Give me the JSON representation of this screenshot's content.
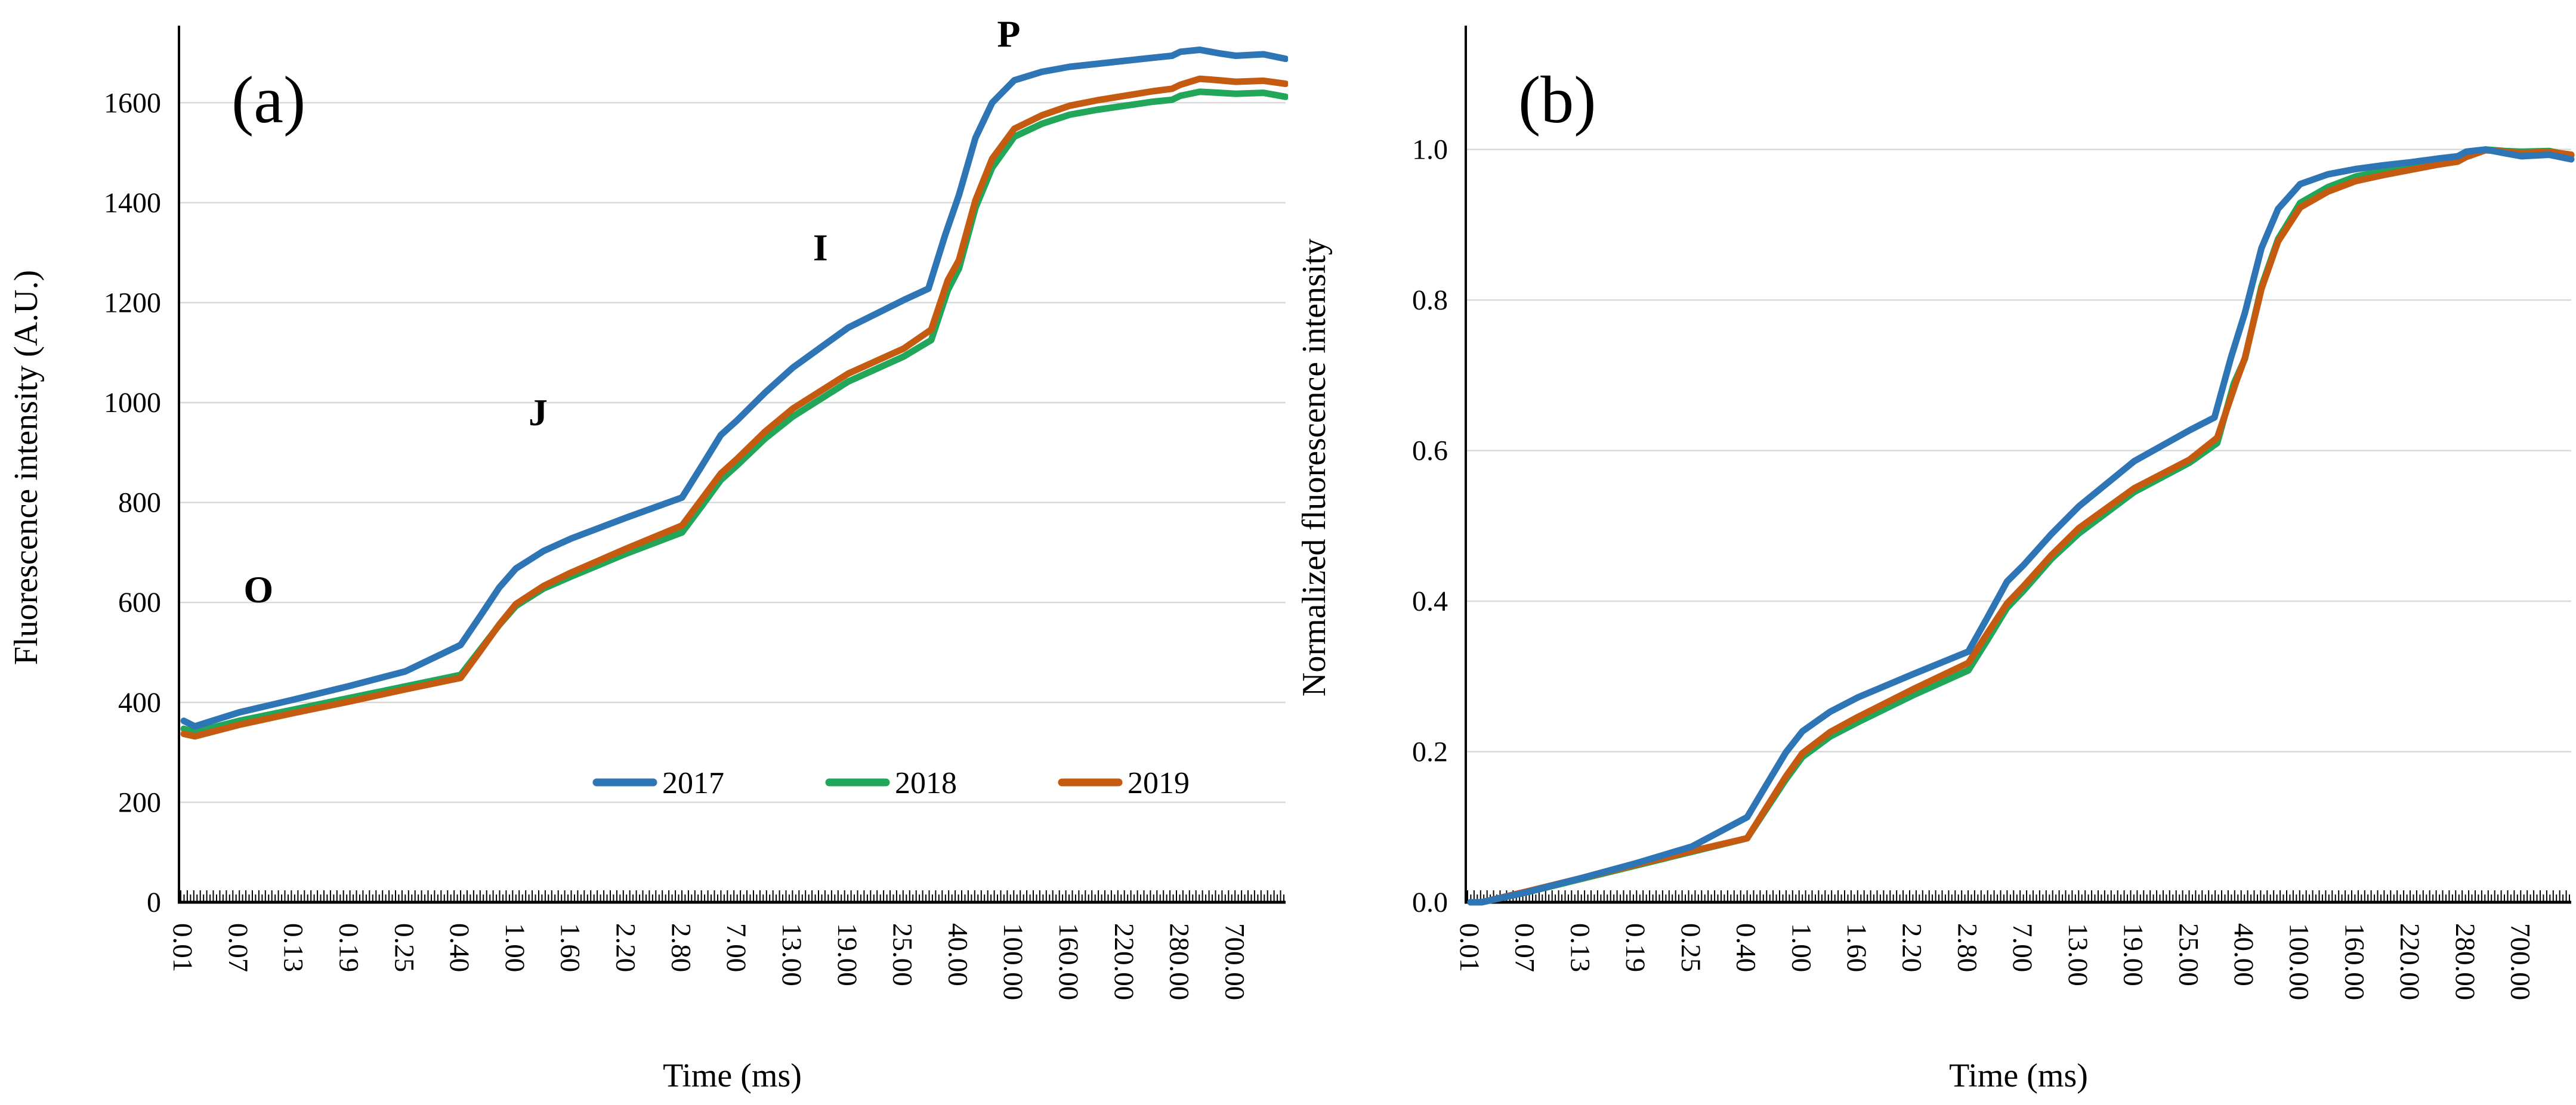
{
  "figure": {
    "background": "#ffffff",
    "grid_color": "#d9d9d9",
    "axis_color": "#000000"
  },
  "chart_data": [
    {
      "type": "line",
      "panel_label": "(a)",
      "ylabel": "Fluorescence intensity (A.U.)",
      "xlabel": "Time (ms)",
      "x_tick_labels": [
        "0.01",
        "0.07",
        "0.13",
        "0.19",
        "0.25",
        "0.40",
        "1.00",
        "1.60",
        "2.20",
        "2.80",
        "7.00",
        "13.00",
        "19.00",
        "25.00",
        "40.00",
        "100.00",
        "160.00",
        "220.00",
        "280.00",
        "700.00"
      ],
      "y_tick_labels": [
        "0",
        "200",
        "400",
        "600",
        "800",
        "1000",
        "1200",
        "1400",
        "1600"
      ],
      "ylim": [
        0,
        1740
      ],
      "ytick_step": 200,
      "grid": true,
      "x_minor_tick_count": 340,
      "legend": {
        "entries": [
          "2017",
          "2018",
          "2019"
        ]
      },
      "annotations": [
        {
          "text": "O",
          "xi": 1.35,
          "v": 600
        },
        {
          "text": "J",
          "xi": 6.4,
          "v": 955
        },
        {
          "text": "I",
          "xi": 11.5,
          "v": 1285
        },
        {
          "text": "P",
          "xi": 14.9,
          "v": 1712
        }
      ],
      "series": [
        {
          "name": "2017",
          "color": "#2E75B6",
          "z": 2,
          "points": [
            [
              0,
              363
            ],
            [
              0.2,
              352
            ],
            [
              1,
              380
            ],
            [
              2,
              406
            ],
            [
              3,
              433
            ],
            [
              4,
              462
            ],
            [
              5,
              515
            ],
            [
              5.35,
              572
            ],
            [
              5.7,
              630
            ],
            [
              6,
              668
            ],
            [
              6.5,
              703
            ],
            [
              7,
              728
            ],
            [
              8,
              770
            ],
            [
              9,
              810
            ],
            [
              9.35,
              872
            ],
            [
              9.7,
              935
            ],
            [
              10,
              965
            ],
            [
              10.5,
              1020
            ],
            [
              11,
              1070
            ],
            [
              12,
              1150
            ],
            [
              13,
              1205
            ],
            [
              13.45,
              1228
            ],
            [
              13.75,
              1335
            ],
            [
              14,
              1415
            ],
            [
              14.3,
              1530
            ],
            [
              14.6,
              1600
            ],
            [
              15,
              1645
            ],
            [
              15.5,
              1662
            ],
            [
              16,
              1672
            ],
            [
              16.5,
              1678
            ],
            [
              17,
              1684
            ],
            [
              17.5,
              1690
            ],
            [
              17.85,
              1694
            ],
            [
              18,
              1702
            ],
            [
              18.35,
              1706
            ],
            [
              18.7,
              1699
            ],
            [
              19,
              1694
            ],
            [
              19.5,
              1697
            ],
            [
              19.9,
              1688
            ]
          ]
        },
        {
          "name": "2018",
          "color": "#21A65A",
          "z": 0,
          "points": [
            [
              0,
              347
            ],
            [
              0.2,
              341
            ],
            [
              1,
              363
            ],
            [
              2,
              386
            ],
            [
              3,
              409
            ],
            [
              4,
              432
            ],
            [
              5,
              455
            ],
            [
              5.35,
              505
            ],
            [
              5.7,
              555
            ],
            [
              6,
              593
            ],
            [
              6.5,
              628
            ],
            [
              7,
              652
            ],
            [
              8,
              698
            ],
            [
              9,
              740
            ],
            [
              9.35,
              792
            ],
            [
              9.7,
              845
            ],
            [
              10,
              875
            ],
            [
              10.5,
              928
            ],
            [
              11,
              972
            ],
            [
              12,
              1042
            ],
            [
              13,
              1092
            ],
            [
              13.5,
              1125
            ],
            [
              13.8,
              1225
            ],
            [
              14,
              1268
            ],
            [
              14.3,
              1390
            ],
            [
              14.6,
              1470
            ],
            [
              15,
              1532
            ],
            [
              15.5,
              1558
            ],
            [
              16,
              1576
            ],
            [
              16.5,
              1586
            ],
            [
              17,
              1594
            ],
            [
              17.5,
              1602
            ],
            [
              17.85,
              1606
            ],
            [
              18,
              1614
            ],
            [
              18.35,
              1622
            ],
            [
              18.7,
              1620
            ],
            [
              19,
              1618
            ],
            [
              19.5,
              1620
            ],
            [
              19.9,
              1612
            ]
          ]
        },
        {
          "name": "2019",
          "color": "#C55A11",
          "z": 1,
          "points": [
            [
              0,
              337
            ],
            [
              0.2,
              332
            ],
            [
              1,
              355
            ],
            [
              2,
              379
            ],
            [
              3,
              402
            ],
            [
              4,
              426
            ],
            [
              5,
              449
            ],
            [
              5.35,
              502
            ],
            [
              5.7,
              556
            ],
            [
              6,
              597
            ],
            [
              6.5,
              633
            ],
            [
              7,
              660
            ],
            [
              8,
              708
            ],
            [
              9,
              754
            ],
            [
              9.35,
              806
            ],
            [
              9.7,
              858
            ],
            [
              10,
              888
            ],
            [
              10.5,
              942
            ],
            [
              11,
              988
            ],
            [
              12,
              1058
            ],
            [
              13,
              1108
            ],
            [
              13.5,
              1146
            ],
            [
              13.8,
              1245
            ],
            [
              14,
              1285
            ],
            [
              14.3,
              1405
            ],
            [
              14.6,
              1488
            ],
            [
              15,
              1548
            ],
            [
              15.5,
              1575
            ],
            [
              16,
              1594
            ],
            [
              16.5,
              1605
            ],
            [
              17,
              1614
            ],
            [
              17.5,
              1623
            ],
            [
              17.85,
              1628
            ],
            [
              18,
              1636
            ],
            [
              18.35,
              1648
            ],
            [
              18.7,
              1645
            ],
            [
              19,
              1642
            ],
            [
              19.5,
              1644
            ],
            [
              19.9,
              1638
            ]
          ]
        }
      ]
    },
    {
      "type": "line",
      "panel_label": "(b)",
      "ylabel": "Normalized fluorescence intensity",
      "xlabel": "Time (ms)",
      "x_tick_labels": [
        "0.01",
        "0.07",
        "0.13",
        "0.19",
        "0.25",
        "0.40",
        "1.00",
        "1.60",
        "2.20",
        "2.80",
        "7.00",
        "13.00",
        "19.00",
        "25.00",
        "40.00",
        "100.00",
        "160.00",
        "220.00",
        "280.00",
        "700.00"
      ],
      "y_tick_labels": [
        "0.0",
        "0.2",
        "0.4",
        "0.6",
        "0.8",
        "1.0"
      ],
      "ylim": [
        0,
        1.155
      ],
      "ytick_step": 0.2,
      "grid": true,
      "x_minor_tick_count": 340,
      "legend": null,
      "annotations": [],
      "series": [
        {
          "name": "2017",
          "color": "#2E75B6",
          "z": 2,
          "points": [
            [
              0,
              0
            ],
            [
              0.2,
              0
            ],
            [
              1,
              0.013
            ],
            [
              2,
              0.032
            ],
            [
              3,
              0.052
            ],
            [
              4,
              0.074
            ],
            [
              5,
              0.113
            ],
            [
              5.35,
              0.156
            ],
            [
              5.7,
              0.199
            ],
            [
              6,
              0.227
            ],
            [
              6.5,
              0.253
            ],
            [
              7,
              0.272
            ],
            [
              8,
              0.303
            ],
            [
              9,
              0.333
            ],
            [
              9.35,
              0.379
            ],
            [
              9.7,
              0.426
            ],
            [
              10,
              0.448
            ],
            [
              10.5,
              0.489
            ],
            [
              11,
              0.526
            ],
            [
              12,
              0.586
            ],
            [
              13,
              0.627
            ],
            [
              13.45,
              0.644
            ],
            [
              13.75,
              0.724
            ],
            [
              14,
              0.783
            ],
            [
              14.3,
              0.869
            ],
            [
              14.6,
              0.921
            ],
            [
              15,
              0.954
            ],
            [
              15.5,
              0.967
            ],
            [
              16,
              0.974
            ],
            [
              16.5,
              0.979
            ],
            [
              17,
              0.983
            ],
            [
              17.5,
              0.988
            ],
            [
              17.85,
              0.991
            ],
            [
              18,
              0.997
            ],
            [
              18.35,
              1.0
            ],
            [
              18.7,
              0.995
            ],
            [
              19,
              0.991
            ],
            [
              19.5,
              0.993
            ],
            [
              19.9,
              0.987
            ]
          ]
        },
        {
          "name": "2018",
          "color": "#21A65A",
          "z": 0,
          "points": [
            [
              0,
              0
            ],
            [
              0.2,
              0
            ],
            [
              1,
              0.013
            ],
            [
              2,
              0.031
            ],
            [
              3,
              0.049
            ],
            [
              4,
              0.067
            ],
            [
              5,
              0.085
            ],
            [
              5.35,
              0.124
            ],
            [
              5.7,
              0.163
            ],
            [
              6,
              0.193
            ],
            [
              6.5,
              0.22
            ],
            [
              7,
              0.239
            ],
            [
              8,
              0.275
            ],
            [
              9,
              0.308
            ],
            [
              9.35,
              0.349
            ],
            [
              9.7,
              0.391
            ],
            [
              10,
              0.414
            ],
            [
              10.5,
              0.456
            ],
            [
              11,
              0.49
            ],
            [
              12,
              0.545
            ],
            [
              13,
              0.584
            ],
            [
              13.5,
              0.61
            ],
            [
              13.8,
              0.689
            ],
            [
              14,
              0.722
            ],
            [
              14.3,
              0.818
            ],
            [
              14.6,
              0.881
            ],
            [
              15,
              0.929
            ],
            [
              15.5,
              0.95
            ],
            [
              16,
              0.964
            ],
            [
              16.5,
              0.972
            ],
            [
              17,
              0.978
            ],
            [
              17.5,
              0.984
            ],
            [
              17.85,
              0.988
            ],
            [
              18,
              0.994
            ],
            [
              18.35,
              1.0
            ],
            [
              18.7,
              0.998
            ],
            [
              19,
              0.997
            ],
            [
              19.5,
              0.998
            ],
            [
              19.9,
              0.992
            ]
          ]
        },
        {
          "name": "2019",
          "color": "#C55A11",
          "z": 1,
          "points": [
            [
              0,
              0
            ],
            [
              0.2,
              0
            ],
            [
              1,
              0.014
            ],
            [
              2,
              0.032
            ],
            [
              3,
              0.05
            ],
            [
              4,
              0.068
            ],
            [
              5,
              0.085
            ],
            [
              5.35,
              0.126
            ],
            [
              5.7,
              0.167
            ],
            [
              6,
              0.198
            ],
            [
              6.5,
              0.226
            ],
            [
              7,
              0.246
            ],
            [
              8,
              0.283
            ],
            [
              9,
              0.318
            ],
            [
              9.35,
              0.358
            ],
            [
              9.7,
              0.397
            ],
            [
              10,
              0.42
            ],
            [
              10.5,
              0.461
            ],
            [
              11,
              0.497
            ],
            [
              12,
              0.55
            ],
            [
              13,
              0.588
            ],
            [
              13.5,
              0.617
            ],
            [
              13.85,
              0.693
            ],
            [
              14,
              0.723
            ],
            [
              14.3,
              0.815
            ],
            [
              14.6,
              0.878
            ],
            [
              15,
              0.923
            ],
            [
              15.5,
              0.944
            ],
            [
              16,
              0.958
            ],
            [
              16.5,
              0.966
            ],
            [
              17,
              0.973
            ],
            [
              17.5,
              0.98
            ],
            [
              17.85,
              0.984
            ],
            [
              18,
              0.99
            ],
            [
              18.35,
              0.999
            ],
            [
              18.7,
              0.997
            ],
            [
              19,
              0.995
            ],
            [
              19.5,
              0.997
            ],
            [
              19.9,
              0.993
            ]
          ]
        }
      ]
    }
  ]
}
